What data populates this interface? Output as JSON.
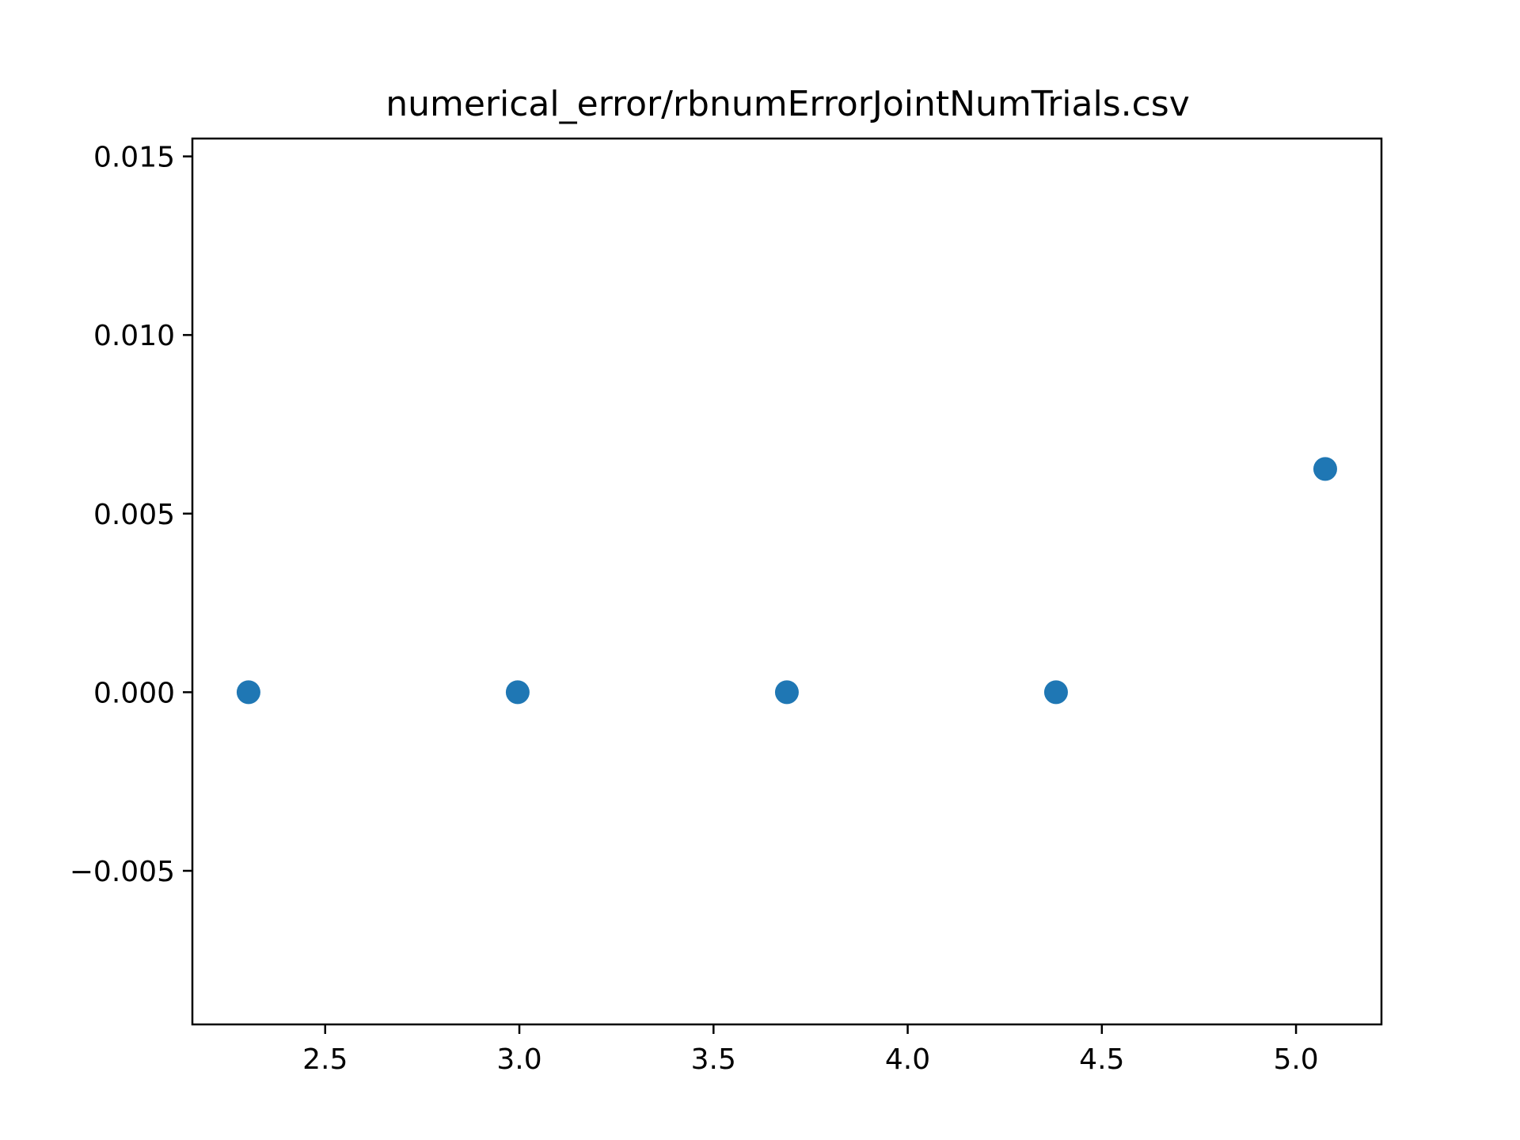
{
  "chart_data": {
    "type": "scatter",
    "title": "numerical_error/rbnumErrorJointNumTrials.csv",
    "xlabel": "",
    "ylabel": "",
    "xlim": [
      2.158,
      5.22
    ],
    "ylim": [
      -0.0093,
      0.0155
    ],
    "grid": false,
    "legend": "none",
    "colors": {
      "marker": "#1f77b4",
      "axes": "#000000",
      "background": "#ffffff"
    },
    "x_ticks": [
      {
        "value": 2.5,
        "label": "2.5"
      },
      {
        "value": 3.0,
        "label": "3.0"
      },
      {
        "value": 3.5,
        "label": "3.5"
      },
      {
        "value": 4.0,
        "label": "4.0"
      },
      {
        "value": 4.5,
        "label": "4.5"
      },
      {
        "value": 5.0,
        "label": "5.0"
      }
    ],
    "y_ticks": [
      {
        "value": -0.005,
        "label": "−0.005"
      },
      {
        "value": 0.0,
        "label": "0.000"
      },
      {
        "value": 0.005,
        "label": "0.005"
      },
      {
        "value": 0.01,
        "label": "0.010"
      },
      {
        "value": 0.015,
        "label": "0.015"
      }
    ],
    "series": [
      {
        "points": [
          {
            "x": 2.3026,
            "y": 0.0
          },
          {
            "x": 2.9957,
            "y": 0.0
          },
          {
            "x": 3.6889,
            "y": 0.0
          },
          {
            "x": 4.382,
            "y": 0.0
          },
          {
            "x": 5.0752,
            "y": 0.00625
          }
        ]
      }
    ]
  }
}
